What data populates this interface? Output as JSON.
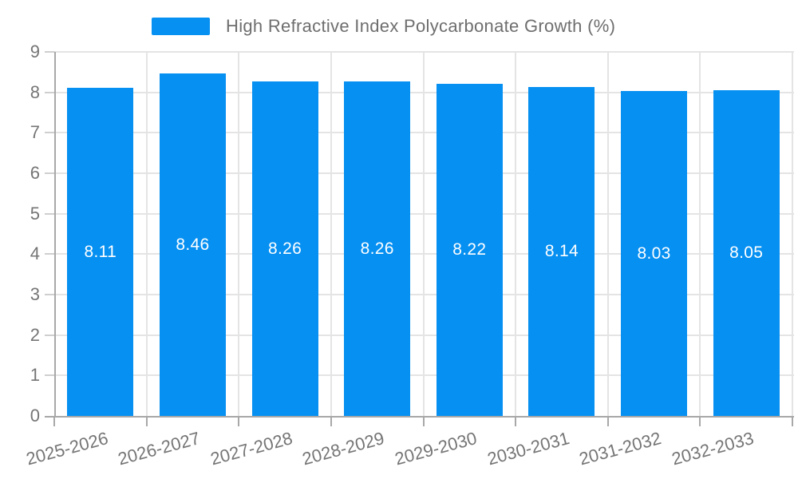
{
  "legend": {
    "label": "High Refractive Index Polycarbonate Growth (%)",
    "swatch_color": "#0690F2"
  },
  "chart_data": {
    "type": "bar",
    "title": "High Refractive Index Polycarbonate Growth (%)",
    "categories": [
      "2025-2026",
      "2026-2027",
      "2027-2028",
      "2028-2029",
      "2029-2030",
      "2030-2031",
      "2031-2032",
      "2032-2033"
    ],
    "values": [
      8.11,
      8.46,
      8.26,
      8.26,
      8.22,
      8.14,
      8.03,
      8.05
    ],
    "value_labels": [
      "8.11",
      "8.46",
      "8.26",
      "8.26",
      "8.22",
      "8.14",
      "8.03",
      "8.05"
    ],
    "xlabel": "",
    "ylabel": "",
    "ylim": [
      0,
      9
    ],
    "y_ticks": [
      0,
      1,
      2,
      3,
      4,
      5,
      6,
      7,
      8,
      9
    ],
    "grid": true,
    "legend_position": "top-center",
    "colors": {
      "bar": "#0690F2",
      "value_label": "#ffffff",
      "gridline": "#e4e4e4",
      "axis_line": "#a8a8a8",
      "tick_label": "#757575",
      "legend_text": "#6e6e6e"
    }
  }
}
